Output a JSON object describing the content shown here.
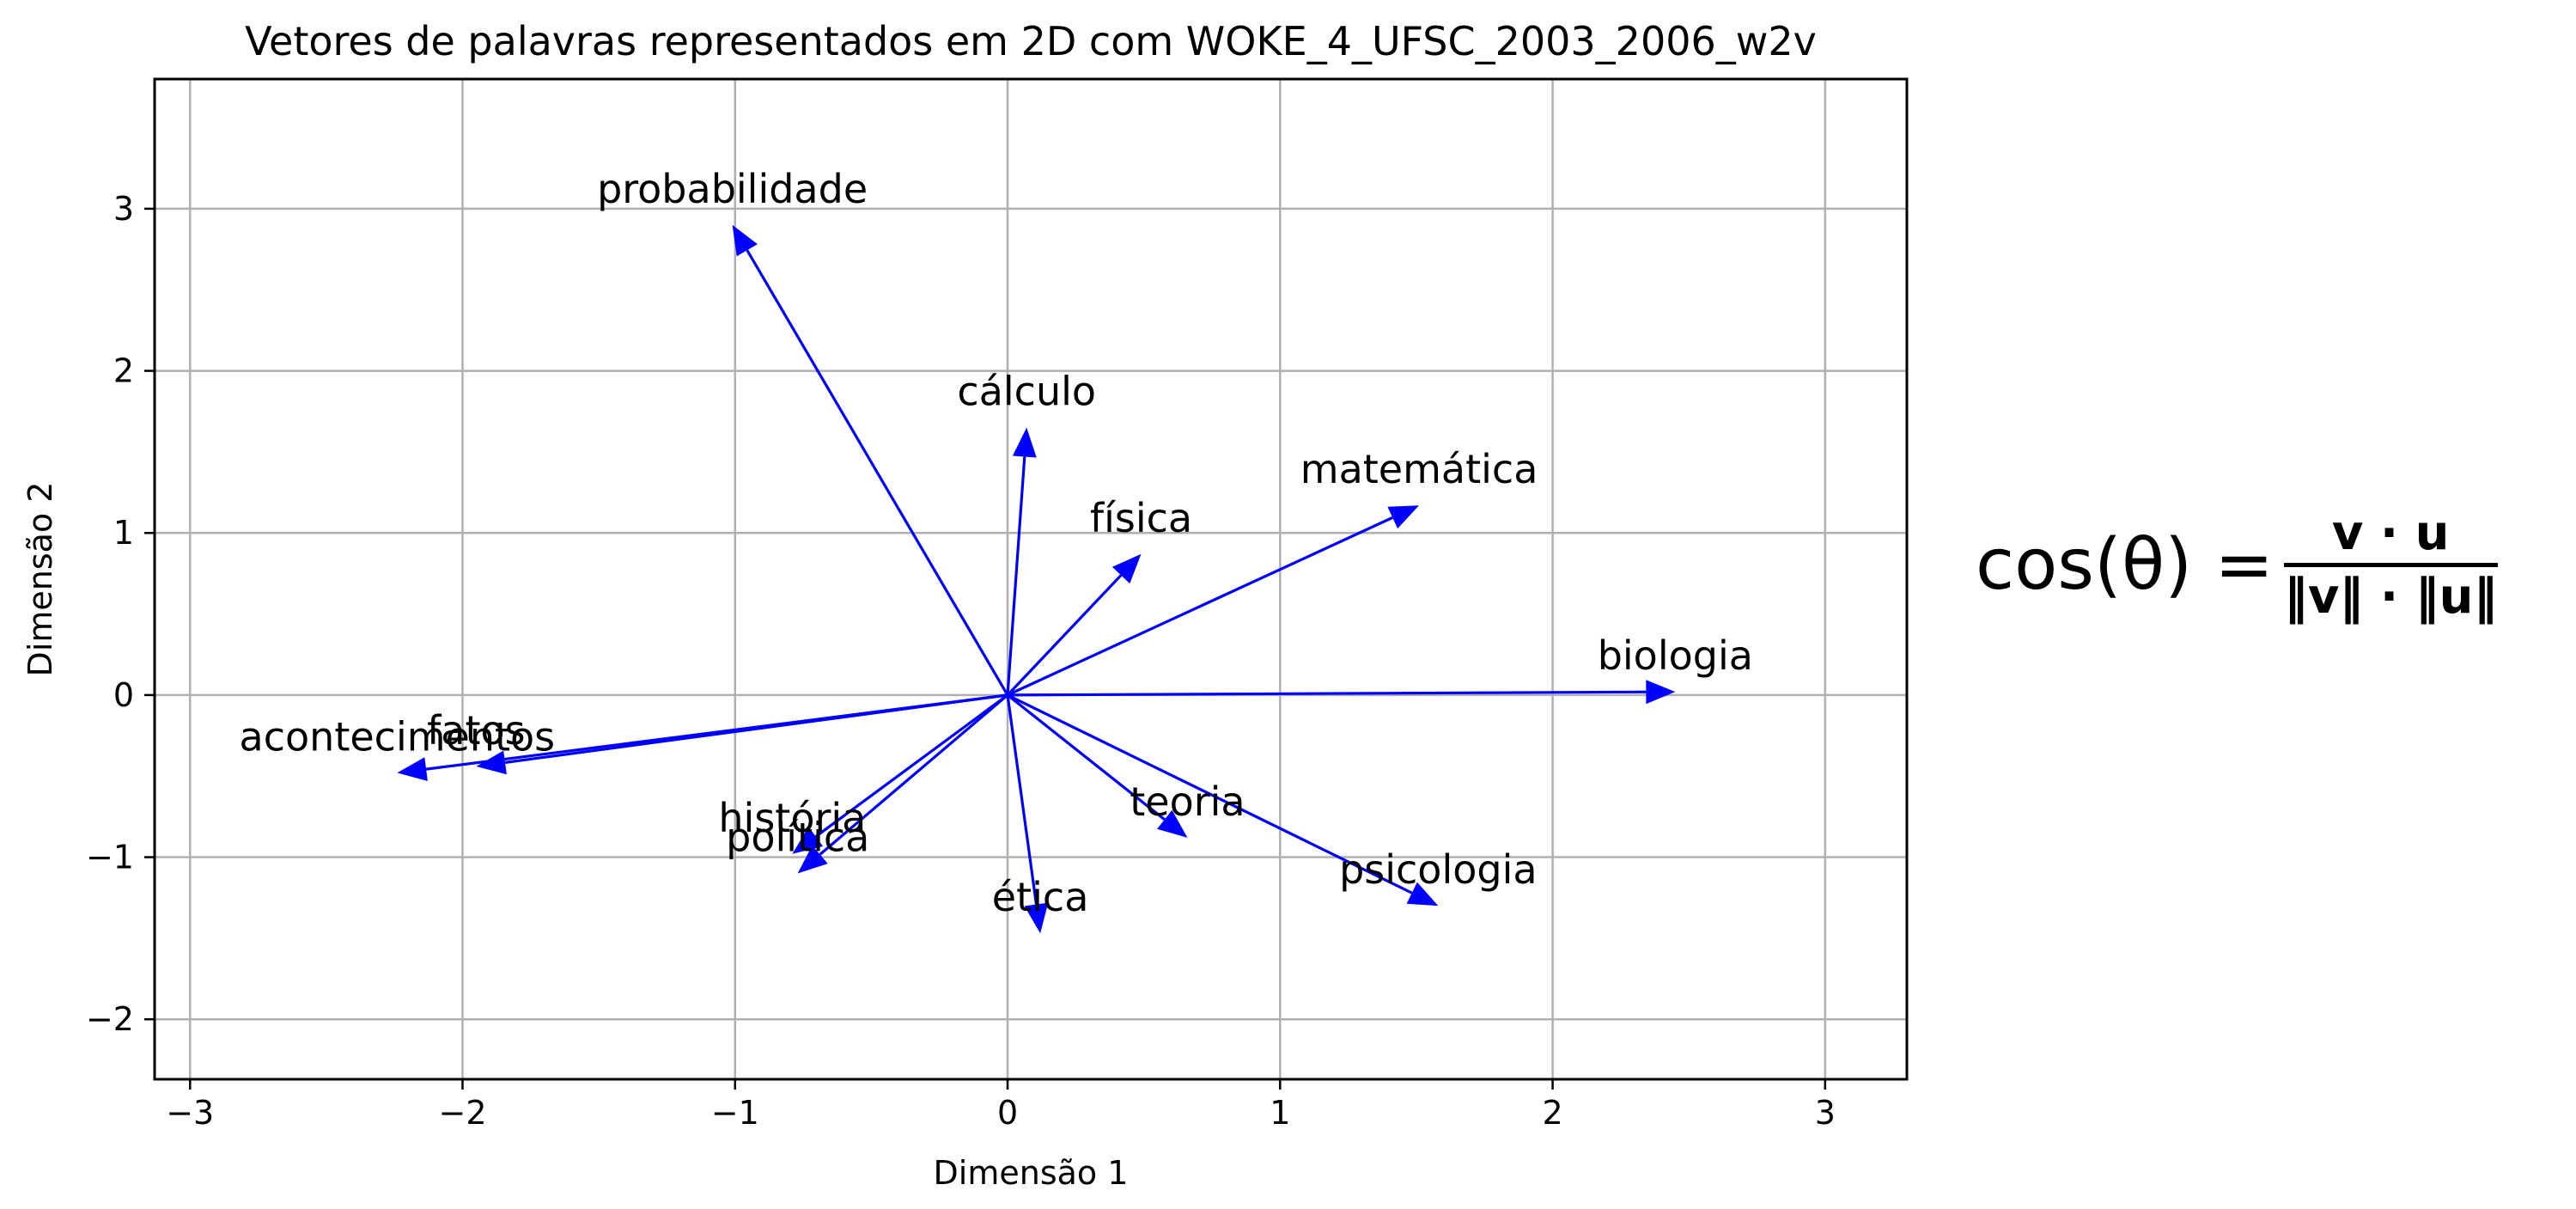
{
  "chart_data": {
    "type": "quiver",
    "title": "Vetores de palavras representados em 2D com WOKE_4_UFSC_2003_2006_w2v",
    "xlabel": "Dimensão 1",
    "ylabel": "Dimensão 2",
    "xlim": [
      -3.13,
      3.3
    ],
    "ylim": [
      -2.37,
      3.8
    ],
    "xticks": [
      -3,
      -2,
      -1,
      0,
      1,
      2,
      3
    ],
    "xtick_labels": [
      "−3",
      "−2",
      "−1",
      "0",
      "1",
      "2",
      "3"
    ],
    "yticks": [
      -2,
      -1,
      0,
      1,
      2,
      3
    ],
    "ytick_labels": [
      "−2",
      "−1",
      "0",
      "1",
      "2",
      "3"
    ],
    "grid": true,
    "arrow_color": "#0000ff",
    "origin": [
      0,
      0
    ],
    "vectors": [
      {
        "label": "probabilidade",
        "x": -1.01,
        "y": 2.9
      },
      {
        "label": "cálculo",
        "x": 0.07,
        "y": 1.65
      },
      {
        "label": "matemática",
        "x": 1.51,
        "y": 1.17
      },
      {
        "label": "física",
        "x": 0.49,
        "y": 0.87
      },
      {
        "label": "biologia",
        "x": 2.45,
        "y": 0.02
      },
      {
        "label": "acontecimentos",
        "x": -2.24,
        "y": -0.48
      },
      {
        "label": "fatos",
        "x": -1.95,
        "y": -0.44
      },
      {
        "label": "teoria",
        "x": 0.66,
        "y": -0.88
      },
      {
        "label": "história",
        "x": -0.79,
        "y": -0.98
      },
      {
        "label": "política",
        "x": -0.77,
        "y": -1.1
      },
      {
        "label": "ética",
        "x": 0.12,
        "y": -1.47
      },
      {
        "label": "psicologia",
        "x": 1.58,
        "y": -1.3
      }
    ]
  },
  "formula": {
    "lhs": "cos(θ) =",
    "numerator": "v · u",
    "denominator": "‖v‖ · ‖u‖"
  }
}
